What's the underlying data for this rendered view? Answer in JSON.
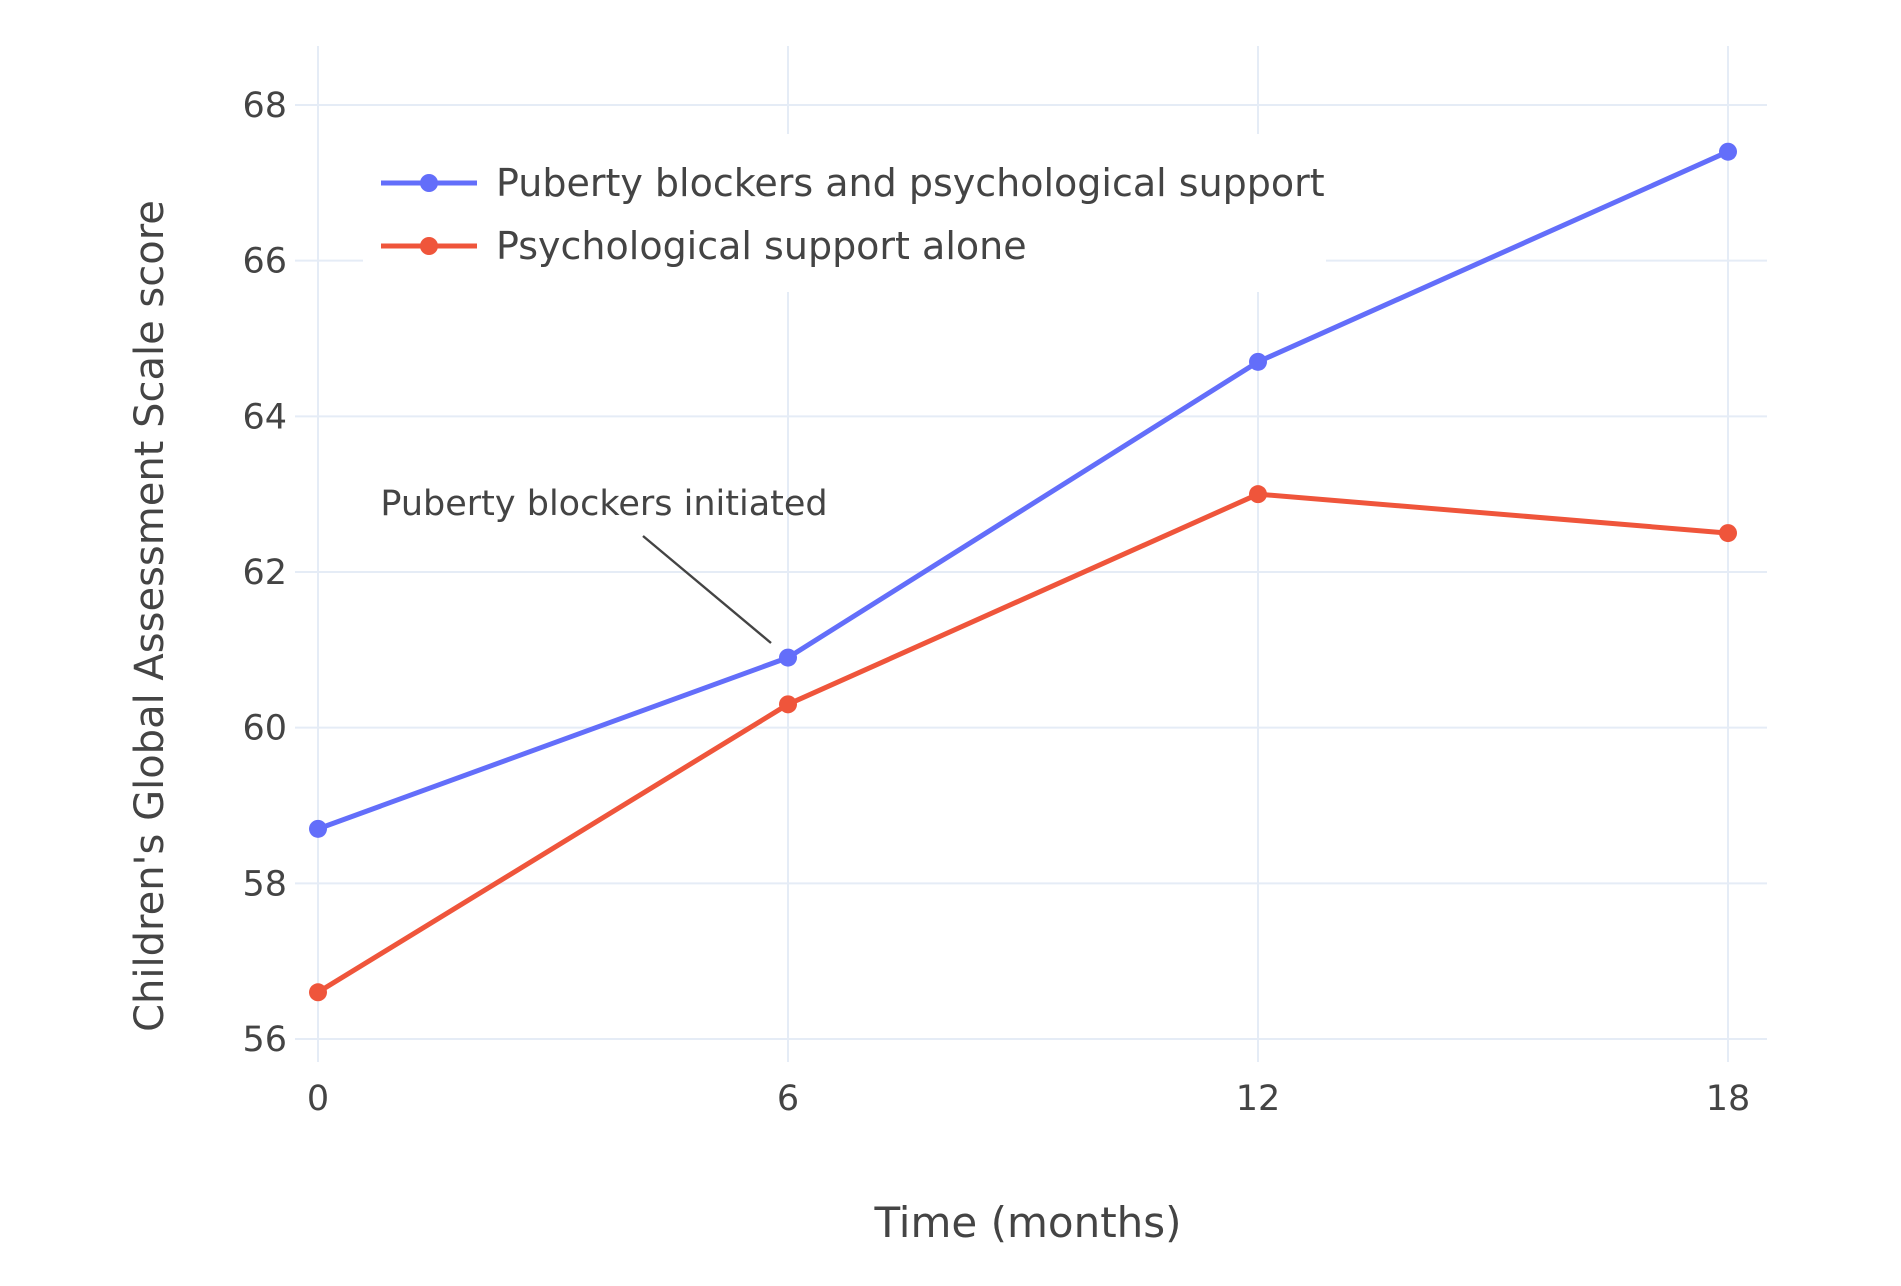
{
  "chart_data": {
    "type": "line",
    "xlabel": "Time (months)",
    "ylabel": "Children's Global Assessment Scale score",
    "x": [
      0,
      6,
      12,
      18
    ],
    "xticks": [
      "0",
      "6",
      "12",
      "18"
    ],
    "yticks": [
      "56",
      "58",
      "60",
      "62",
      "64",
      "66",
      "68"
    ],
    "xlim": [
      0,
      18
    ],
    "ylim": [
      56,
      68
    ],
    "grid": true,
    "legend_position": "top-left",
    "series": [
      {
        "name": "Puberty blockers and psychological support",
        "values": [
          58.7,
          60.9,
          64.7,
          67.4
        ],
        "color": "#636efa"
      },
      {
        "name": "Psychological support alone",
        "values": [
          56.6,
          60.3,
          63.0,
          62.5
        ],
        "color": "#EF553B"
      }
    ],
    "annotations": [
      {
        "text": "Puberty blockers initiated",
        "x": 6,
        "y": 60.9,
        "arrow": true
      }
    ]
  }
}
